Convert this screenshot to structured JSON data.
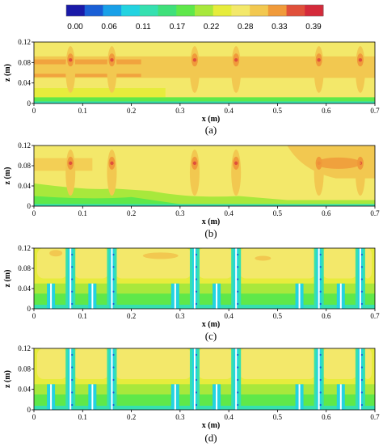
{
  "colorbar": {
    "colors": [
      "#1a1aa8",
      "#1a5fd6",
      "#19a0e8",
      "#23d3e0",
      "#35e0b0",
      "#3fe07a",
      "#5fe84a",
      "#a8e83c",
      "#e6ec3c",
      "#f3e86a",
      "#f2c850",
      "#f09a3a",
      "#e0503a",
      "#d42a3a"
    ],
    "labels": [
      "0.00",
      "0.06",
      "0.11",
      "0.17",
      "0.22",
      "0.28",
      "0.33",
      "0.39"
    ]
  },
  "chart_data": [
    {
      "type": "heatmap",
      "panel_label": "(a)",
      "xlabel": "x (m)",
      "ylabel": "z (m)",
      "xlim": [
        0,
        0.7
      ],
      "ylim": [
        0,
        0.12
      ],
      "x_ticks": [
        "0",
        "0.1",
        "0.2",
        "0.3",
        "0.4",
        "0.5",
        "0.6",
        "0.7"
      ],
      "y_ticks": [
        "0",
        "0.04",
        "0.08",
        "0.12"
      ],
      "hot_columns_x": [
        0.075,
        0.16,
        0.33,
        0.415,
        0.585,
        0.67
      ],
      "baffles_x": []
    },
    {
      "type": "heatmap",
      "panel_label": "(b)",
      "xlabel": "x (m)",
      "ylabel": "z (m)",
      "xlim": [
        0,
        0.7
      ],
      "ylim": [
        0,
        0.12
      ],
      "x_ticks": [
        "0",
        "0.1",
        "0.2",
        "0.3",
        "0.4",
        "0.5",
        "0.6",
        "0.7"
      ],
      "y_ticks": [
        "0",
        "0.04",
        "0.08",
        "0.12"
      ],
      "hot_columns_x": [
        0.075,
        0.16,
        0.33,
        0.415,
        0.585,
        0.67
      ],
      "baffles_x": []
    },
    {
      "type": "heatmap",
      "panel_label": "(c)",
      "xlabel": "x (m)",
      "ylabel": "z (m)",
      "xlim": [
        0,
        0.7
      ],
      "ylim": [
        0,
        0.12
      ],
      "x_ticks": [
        "0",
        "0.1",
        "0.2",
        "0.3",
        "0.4",
        "0.5",
        "0.6",
        "0.7"
      ],
      "y_ticks": [
        "0",
        "0.04",
        "0.08",
        "0.12"
      ],
      "hot_columns_x": [],
      "baffles_x": [
        0.075,
        0.16,
        0.33,
        0.415,
        0.585,
        0.67
      ],
      "short_baffles_x": [
        0.035,
        0.12,
        0.29,
        0.375,
        0.545,
        0.63
      ]
    },
    {
      "type": "heatmap",
      "panel_label": "(d)",
      "xlabel": "x (m)",
      "ylabel": "z (m)",
      "xlim": [
        0,
        0.7
      ],
      "ylim": [
        0,
        0.12
      ],
      "x_ticks": [
        "0",
        "0.1",
        "0.2",
        "0.3",
        "0.4",
        "0.5",
        "0.6",
        "0.7"
      ],
      "y_ticks": [
        "0",
        "0.04",
        "0.08",
        "0.12"
      ],
      "hot_columns_x": [],
      "baffles_x": [
        0.075,
        0.16,
        0.33,
        0.415,
        0.585,
        0.67
      ],
      "short_baffles_x": [
        0.035,
        0.12,
        0.29,
        0.375,
        0.545,
        0.63
      ]
    }
  ]
}
